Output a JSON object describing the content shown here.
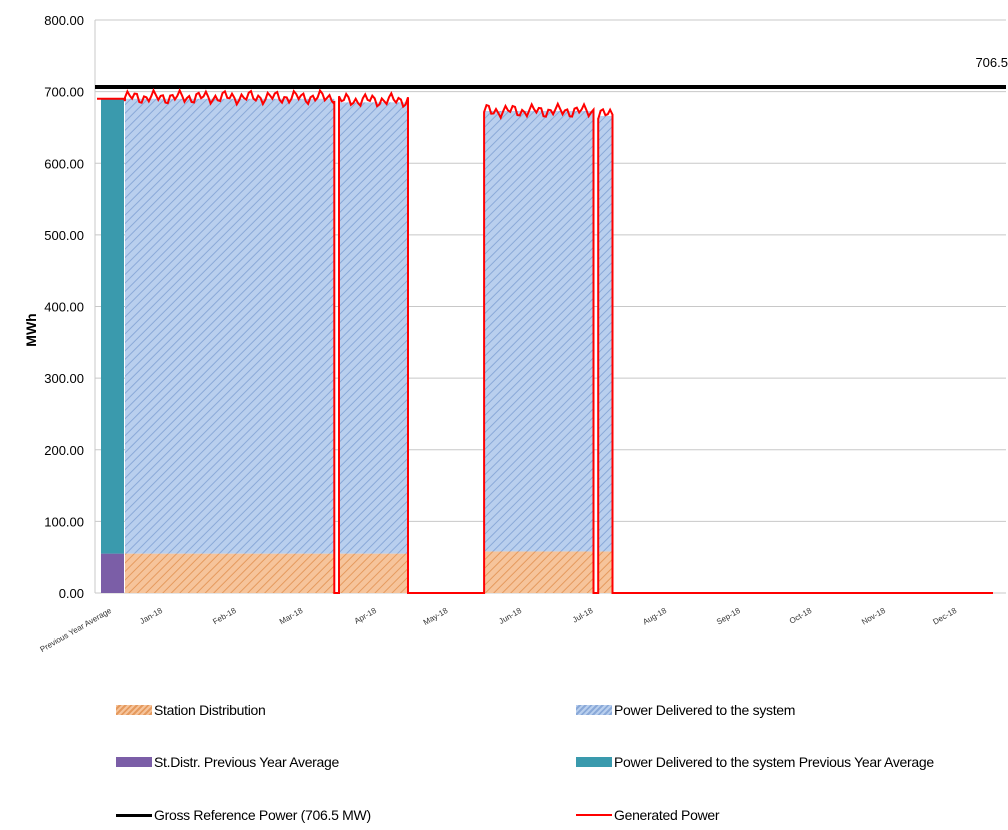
{
  "chart_data": {
    "type": "area",
    "ylabel": "MWh",
    "ylim": [
      0,
      800
    ],
    "yticks": [
      "0.00",
      "100.00",
      "200.00",
      "300.00",
      "400.00",
      "500.00",
      "600.00",
      "700.00",
      "800.00"
    ],
    "grid": true,
    "categories": [
      "Previous Year Average",
      "Jan-18",
      "Feb-18",
      "Mar-18",
      "Apr-18",
      "May-18",
      "Jun-18",
      "Jul-18",
      "Aug-18",
      "Sep-18",
      "Oct-18",
      "Nov-18",
      "Dec-18"
    ],
    "reference_line": {
      "value": 706.5,
      "label": "706.5"
    },
    "previous_year_average": {
      "station_distribution": 55,
      "power_delivered": 635
    },
    "x_days": [
      0,
      31,
      59,
      90,
      120,
      151,
      181,
      212,
      243,
      273,
      304,
      334,
      365
    ],
    "operating_periods": [
      {
        "start_day": 0,
        "end_day": 88,
        "power_delivered": 635,
        "station_distribution": 55,
        "generated_mean": 692
      },
      {
        "start_day": 90,
        "end_day": 119,
        "power_delivered": 630,
        "station_distribution": 55,
        "generated_mean": 688
      },
      {
        "start_day": 151,
        "end_day": 197,
        "power_delivered": 615,
        "station_distribution": 58,
        "generated_mean": 673
      },
      {
        "start_day": 199,
        "end_day": 205,
        "power_delivered": 608,
        "station_distribution": 58,
        "generated_mean": 668
      }
    ],
    "legend_placement": "bottom",
    "legend": [
      {
        "name": "Station Distribution",
        "kind": "hatch-orange"
      },
      {
        "name": "Power Delivered to the system",
        "kind": "hatch-blue"
      },
      {
        "name": "St.Distr. Previous Year Average",
        "kind": "solid",
        "color": "#7b5ea7"
      },
      {
        "name": "Power Delivered to the system Previous Year Average",
        "kind": "solid",
        "color": "#3a9aad"
      },
      {
        "name": "Gross Reference Power (706.5 MW)",
        "kind": "line",
        "color": "#000000"
      },
      {
        "name": "Generated Power",
        "kind": "line",
        "color": "#ff0000"
      }
    ],
    "colors": {
      "station_distribution": "#f4b183",
      "power_delivered": "#a9c4e8",
      "prev_station": "#7b5ea7",
      "prev_delivered": "#3a9aad",
      "reference": "#000000",
      "generated": "#ff0000"
    }
  }
}
